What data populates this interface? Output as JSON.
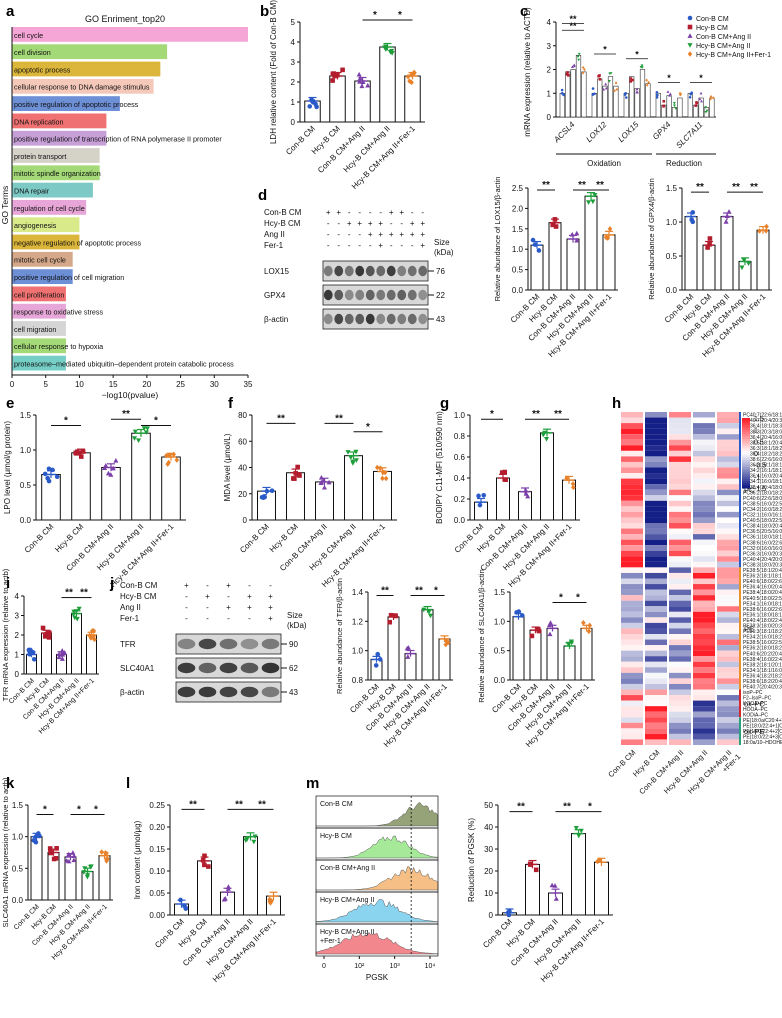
{
  "panels": [
    "a",
    "b",
    "c",
    "d",
    "e",
    "f",
    "g",
    "h",
    "i",
    "j",
    "k",
    "l",
    "m"
  ],
  "groups": [
    "Con-B CM",
    "Hcy-B CM",
    "Con-B CM+Ang II",
    "Hcy-B CM+Ang II",
    "Hcy-B CM+Ang II+Fer-1"
  ],
  "groups_h": [
    "Con-B CM",
    "Hcy-B CM",
    "Con-B CM+Ang II",
    "Hcy-B CM+Ang II",
    "Hcy-B CM+Ang II",
    "+Fer-1"
  ],
  "colors": {
    "con": "#2a5ac8",
    "hcy": "#b31d2e",
    "conang": "#7b3fa8",
    "hcyang": "#1e9e3a",
    "fer": "#e8822a"
  },
  "chart_data": [
    {
      "id": "a",
      "type": "bar",
      "title": "GO Enriment_top20",
      "xlabel": "−log10(pvalue)",
      "ylabel": "GO Terms",
      "xlim": [
        0,
        35
      ],
      "xticks": [
        "0",
        "5",
        "10",
        "15",
        "20",
        "25",
        "30",
        "35"
      ],
      "categories": [
        "cell cycle",
        "cell division",
        "apoptotic process",
        "cellular response to DNA damage stimulus",
        "positive regulation of apoptotic process",
        "DNA replication",
        "positive regulation of transcription of RNA polymerase II promoter",
        "protein transport",
        "mitotic spindle organization",
        "DNA repair",
        "regulation of cell cycle",
        "angiogenesis",
        "negative regulation of apoptotic process",
        "mitotic cell cycle",
        "positive regulation of cell migration",
        "cell proliferation",
        "response to oxidative stress",
        "cell migration",
        "cellular response to hypoxia",
        "proteasome–mediated ubiquitin–dependent protein catabolic process"
      ],
      "values": [
        35,
        23,
        22,
        21,
        16,
        14,
        14,
        13,
        13,
        12,
        11,
        10,
        10,
        9,
        9,
        8,
        8,
        8,
        8,
        8
      ],
      "colors": [
        "#f5a6d6",
        "#a3d977",
        "#dcb63a",
        "#f5c9ba",
        "#6d8fd6",
        "#f07171",
        "#c8a0d8",
        "#d5d2c8",
        "#a3d977",
        "#7dc9c6",
        "#e8a6d8",
        "#d9ea8a",
        "#dcb63a",
        "#d5a88a",
        "#6d8fd6",
        "#f07171",
        "#e6a6d8",
        "#d5d5d5",
        "#a3d977",
        "#76cfc6"
      ]
    },
    {
      "id": "b",
      "type": "bar",
      "ylabel": "LDH relative content (Fold of Con-B CM)",
      "ylim": [
        0,
        5
      ],
      "yticks": [
        "0",
        "1",
        "2",
        "3",
        "4",
        "5"
      ],
      "values": [
        1.05,
        2.3,
        2.05,
        3.75,
        2.3
      ],
      "significance": [
        "*",
        "*"
      ]
    },
    {
      "id": "c",
      "type": "bar",
      "ylabel": "mRNA expression (relative to ACTB)",
      "ylim": [
        0,
        4
      ],
      "yticks": [
        "0",
        "1",
        "2",
        "3",
        "4"
      ],
      "categories": [
        "ACSL4",
        "LOX12",
        "LOX15",
        "GPX4",
        "SLC7A11"
      ],
      "series": [
        {
          "name": "Con-B CM",
          "values": [
            1.0,
            1.0,
            1.0,
            1.0,
            1.0
          ]
        },
        {
          "name": "Hcy-B CM",
          "values": [
            1.9,
            1.6,
            1.7,
            0.5,
            0.5
          ]
        },
        {
          "name": "Con-B CM+Ang II",
          "values": [
            2.0,
            1.3,
            1.2,
            0.9,
            0.8
          ]
        },
        {
          "name": "Hcy-B CM+Ang II",
          "values": [
            2.6,
            1.7,
            2.0,
            0.4,
            0.4
          ]
        },
        {
          "name": "Hcy-B CM+Ang II+Fer-1",
          "values": [
            1.9,
            1.3,
            1.4,
            0.8,
            0.8
          ]
        }
      ],
      "group_labels": [
        "Oxidation",
        "Reduction"
      ],
      "significance": [
        "**",
        "**",
        "*",
        "*",
        "*",
        "*"
      ]
    },
    {
      "id": "d",
      "type": "bar",
      "blot": {
        "rows": [
          "Con-B CM",
          "Hcy-B CM",
          "Ang II",
          "Fer-1"
        ],
        "bands": [
          "LOX15",
          "GPX4",
          "β-actin"
        ],
        "kda": [
          "76",
          "22",
          "43"
        ],
        "size_label": "Size (kDa)",
        "symbols": [
          [
            "+",
            "+",
            "-",
            "-",
            "-",
            "-",
            "+",
            "+",
            "-",
            "-"
          ],
          [
            "-",
            "-",
            "+",
            "+",
            "+",
            "+",
            "-",
            "-",
            "+",
            "+"
          ],
          [
            "-",
            "-",
            "-",
            "-",
            "+",
            "+",
            "+",
            "+",
            "+",
            "+"
          ],
          [
            "-",
            "-",
            "-",
            "-",
            "-",
            "+",
            "-",
            "-",
            "-",
            "+"
          ]
        ]
      },
      "sub": [
        {
          "ylabel": "Relative abundance of LOX15/β-actin",
          "ylim": [
            0,
            2.5
          ],
          "yticks": [
            "0.0",
            "0.5",
            "1.0",
            "1.5",
            "2.0",
            "2.5"
          ],
          "values": [
            1.1,
            1.65,
            1.25,
            2.3,
            1.35
          ],
          "significance": [
            "**",
            "**",
            "**"
          ]
        },
        {
          "ylabel": "Relative abundance of GPX4/β-actin",
          "ylim": [
            0,
            1.5
          ],
          "yticks": [
            "0.0",
            "0.5",
            "1.0",
            "1.5"
          ],
          "values": [
            1.08,
            0.66,
            1.08,
            0.42,
            0.88
          ],
          "significance": [
            "**",
            "**",
            "**"
          ]
        }
      ]
    },
    {
      "id": "e",
      "type": "bar",
      "ylabel": "LPO level (μmol/g protein)",
      "ylim": [
        0,
        1.5
      ],
      "yticks": [
        "0.0",
        "0.5",
        "1.0",
        "1.5"
      ],
      "values": [
        0.65,
        0.96,
        0.75,
        1.24,
        0.9
      ],
      "significance": [
        "*",
        "**",
        "*"
      ]
    },
    {
      "id": "f",
      "type": "bar",
      "ylabel": "MDA level (μmol/L)",
      "ylim": [
        0,
        80
      ],
      "yticks": [
        "0",
        "20",
        "40",
        "60",
        "80"
      ],
      "values": [
        22,
        36,
        29,
        49,
        37
      ],
      "significance": [
        "**",
        "**",
        "*"
      ]
    },
    {
      "id": "g",
      "type": "bar",
      "ylabel": "BODIPY C11-MFI (510/590 nm)",
      "ylim": [
        0,
        1.0
      ],
      "yticks": [
        "0.0",
        "0.2",
        "0.4",
        "0.6",
        "0.8",
        "1.0"
      ],
      "values": [
        0.17,
        0.4,
        0.27,
        0.83,
        0.38
      ],
      "significance": [
        "*",
        "**",
        "**"
      ]
    },
    {
      "id": "h",
      "type": "heatmap",
      "scale": [
        "1.5",
        "1",
        "0.5",
        "0",
        "-0.5",
        "-1",
        "-1.5"
      ],
      "row_classes": [
        "PC",
        "PE",
        "ox-PC",
        "ox-PE"
      ],
      "rows": [
        "PC40:7(22:6/18:1)",
        "PC40:7(20:4/20:3)",
        "PC36:4(18:1/18:3)",
        "PC38:3(20:3/18:0)",
        "PC36:4(20:4/16:0)",
        "PC38:5(18:1/20:4)",
        "PC36:3(18:1/18:2)",
        "PC36:4(18:2/18:2)",
        "PC38:6(22:6/16:0)",
        "PC36:2(18:1/18:1)",
        "PC34:2(16:1/18:1)",
        "PC36:4(16:0/20:4)",
        "PC34:1(16:0/18:1)",
        "PC38:4(20:4/18:0)",
        "PC36:2(18:0/18:2)",
        "PC40:6(22:6/18:0)",
        "PC38:5(16:0/22:5)",
        "PC34:2(16:0/18:2)",
        "PC32:1(16:0/16:1)",
        "PC40:5(18:0/22:5)",
        "PC38:4(18:0/20:4)",
        "PC36:5(20:5/16:0)",
        "PC36:1(18:0/18:1)",
        "PC38:6(16:0/22:6)",
        "PC32:0(16:0/16:0)",
        "PC36:3(16:0/20:3)",
        "PC40:4(20:4/20:0)",
        "PC38:3(18:0/20:3)",
        "PE38:5(18:1/20:4)",
        "PE36:2(18:1/18:1)",
        "PE40:6(18:0/22:6)",
        "PE36:4(16:0/20:4)",
        "PE38:4(18:0/20:4)",
        "PE40:5(18:0/22:5)",
        "PE34:1(16:0/18:1)",
        "PE38:6(16:0/22:6)",
        "PE36:1(18:0/18:1)",
        "PE40:4(18:0/22:4)",
        "PE38:3(18:0/20:3)",
        "PE36:3(18:1/18:2)",
        "PE34:2(16:0/18:2)",
        "PE38:5(16:0/22:5)",
        "PE36:2(18:0/18:2)",
        "PE40:6(20:2/20:4)",
        "PE38:4(16:0/22:4)",
        "PE38:2(18:1/20:1)",
        "PE34:1(18:1/16:0)",
        "PE36:4(18:2/18:2)",
        "PE38:6(18:2/20:4)",
        "PE40:7(20:4/20:3)",
        "isoP–PC",
        "F2–IsoP–PC",
        "KOOA–PC",
        "HOOA–PC",
        "KODiA–PC",
        "PE(18:0a/C20:4+3[O])",
        "PE(18:0/22:4+1[O])",
        "PE(18:0/22:4+2[O])",
        "PE(18:0/22:4+3[O])",
        "18:0a/10–HDOHE–PE"
      ],
      "class_counts": [
        28,
        22,
        5,
        5
      ]
    },
    {
      "id": "i",
      "type": "bar",
      "ylabel": "TFR mRNA expression (relative to actb)",
      "ylim": [
        0,
        4
      ],
      "yticks": [
        "0",
        "1",
        "2",
        "3",
        "4"
      ],
      "values": [
        1.0,
        2.1,
        1.0,
        3.1,
        2.0
      ],
      "significance": [
        "**",
        "**"
      ]
    },
    {
      "id": "k",
      "type": "bar",
      "blot": {
        "rows": [
          "Con-B CM",
          "Hcy-B CM",
          "Ang II",
          "Fer-1"
        ],
        "bands": [
          "TFR",
          "SLC40A1",
          "β-actin"
        ],
        "kda": [
          "90",
          "62",
          "43"
        ],
        "size_label": "Size (kDa)",
        "symbols": [
          [
            "+",
            "-",
            "+",
            "-",
            "-"
          ],
          [
            "-",
            "+",
            "-",
            "+",
            "+"
          ],
          [
            "-",
            "-",
            "+",
            "+",
            "+"
          ],
          [
            "-",
            "-",
            "-",
            "-",
            "+"
          ]
        ]
      },
      "sub": [
        {
          "ylabel": "Relative abundance of TFR/β-actin",
          "ylim": [
            0.8,
            1.4
          ],
          "yticks": [
            "0.8",
            "1.0",
            "1.2",
            "1.4"
          ],
          "values": [
            0.94,
            1.23,
            0.98,
            1.28,
            1.08
          ],
          "significance": [
            "**",
            "**",
            "*"
          ]
        },
        {
          "ylabel": "Relative abundance of SLC40A1/β-actin",
          "ylim": [
            0,
            1.5
          ],
          "yticks": [
            "0.0",
            "0.5",
            "1.0",
            "1.5"
          ],
          "values": [
            1.08,
            0.85,
            0.88,
            0.58,
            0.88
          ],
          "significance": [
            "*",
            "*"
          ]
        }
      ]
    },
    {
      "id": "j",
      "type": "bar",
      "ylabel": "SLC40A1 mRNA expression (relative to actb)",
      "ylim": [
        0,
        1.5
      ],
      "yticks": [
        "0.0",
        "0.5",
        "1.0",
        "1.5"
      ],
      "values": [
        1.0,
        0.75,
        0.68,
        0.45,
        0.7
      ],
      "significance": [
        "*",
        "*",
        "*"
      ]
    },
    {
      "id": "l",
      "type": "bar",
      "ylabel": "Iron content (μmol/μg)",
      "ylim": [
        0,
        0.25
      ],
      "yticks": [
        "0.00",
        "0.05",
        "0.10",
        "0.15",
        "0.20",
        "0.25"
      ],
      "values": [
        0.025,
        0.123,
        0.052,
        0.178,
        0.043
      ],
      "significance": [
        "**",
        "**",
        "**"
      ]
    },
    {
      "id": "m",
      "type": "area",
      "histogram": {
        "xlabel": "PGSK",
        "xticks": [
          "0",
          "10²",
          "10³",
          "10⁴"
        ],
        "labels": [
          "Con-B CM",
          "Hcy-B CM",
          "Con-B CM+Ang II",
          "Hcy-B CM+Ang II",
          "Hcy-B CM+Ang II",
          "+Fer-1"
        ],
        "fills": [
          "#8b9a6b",
          "#9de88f",
          "#f5b97a",
          "#7fd0ef",
          "#f27b82"
        ]
      },
      "bar": {
        "ylabel": "Reduction of PGSK (%)",
        "ylim": [
          0,
          50
        ],
        "yticks": [
          "0",
          "10",
          "20",
          "30",
          "40",
          "50"
        ],
        "values": [
          1,
          23,
          10,
          37,
          24
        ],
        "significance": [
          "**",
          "**",
          "*"
        ]
      }
    }
  ]
}
